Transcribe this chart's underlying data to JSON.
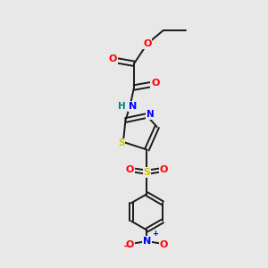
{
  "bg_color": "#e8e8e8",
  "bond_color": "#1a1a1a",
  "colors": {
    "O": "#ff0000",
    "N": "#0000ff",
    "S": "#cccc00",
    "H": "#008080",
    "C": "#1a1a1a"
  }
}
